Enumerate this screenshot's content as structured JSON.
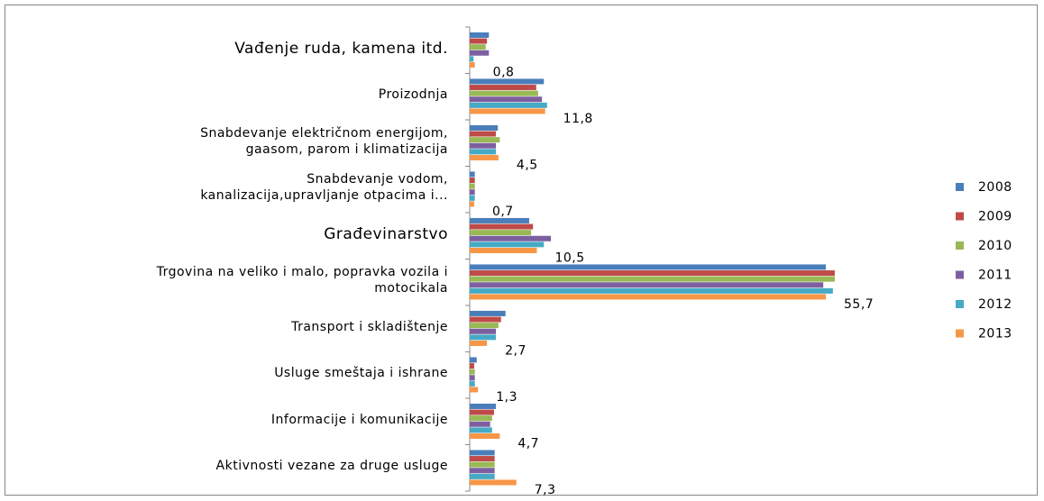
{
  "chart_data": {
    "type": "bar",
    "orientation": "horizontal",
    "categories": [
      "Vađenje ruda, kamena itd.",
      "Proizodnja",
      "Snabdevanje električnom energijom,\ngaasom, parom i klimatizacija",
      "Snabdevanje vodom,\nkanalizacija,upravljanje otpacima i...",
      "Građevinarstvo",
      "Trgovina na veliko i malo, popravka vozila i\nmotocikala",
      "Transport i skladištenje",
      "Usluge smeštaja i ishrane",
      "Informacije i komunikacije",
      "Aktivnosti vezane za druge usluge"
    ],
    "series": [
      {
        "name": "2008",
        "color": "#4a7ebb",
        "values": [
          3.0,
          11.6,
          4.4,
          0.8,
          9.3,
          55.7,
          5.6,
          1.1,
          4.1,
          3.9
        ]
      },
      {
        "name": "2009",
        "color": "#be4b48",
        "values": [
          2.7,
          10.4,
          4.1,
          0.8,
          9.9,
          57.1,
          4.9,
          0.7,
          3.8,
          3.9
        ]
      },
      {
        "name": "2010",
        "color": "#98b954",
        "values": [
          2.5,
          10.7,
          4.7,
          0.8,
          9.6,
          57.1,
          4.5,
          0.8,
          3.5,
          3.9
        ]
      },
      {
        "name": "2011",
        "color": "#7d5fa0",
        "values": [
          3.0,
          11.3,
          4.1,
          0.8,
          12.7,
          55.3,
          4.1,
          0.8,
          3.2,
          3.9
        ]
      },
      {
        "name": "2012",
        "color": "#46aac5",
        "values": [
          0.6,
          12.1,
          4.1,
          0.8,
          11.6,
          56.8,
          4.1,
          0.8,
          3.5,
          3.9
        ]
      },
      {
        "name": "2013",
        "color": "#f79646",
        "values": [
          0.8,
          11.8,
          4.5,
          0.7,
          10.5,
          55.7,
          2.7,
          1.3,
          4.7,
          7.3
        ],
        "value_labels": [
          "0,8",
          "11,8",
          "4,5",
          "0,7",
          "10,5",
          "55,7",
          "2,7",
          "1,3",
          "4,7",
          "7,3"
        ]
      }
    ],
    "legend": "right"
  }
}
